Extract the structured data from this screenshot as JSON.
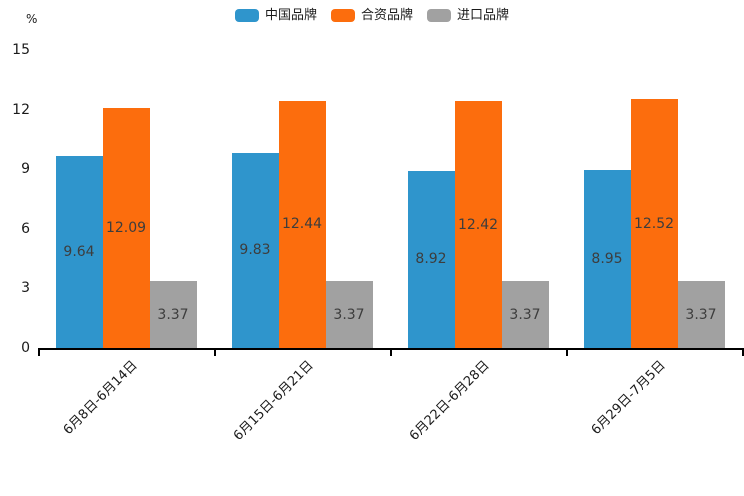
{
  "chart_data": {
    "type": "bar",
    "title": "",
    "unit_label": "%",
    "categories": [
      "6月8日-6月14日",
      "6月15日-6月21日",
      "6月22日-6月28日",
      "6月29日-7月5日"
    ],
    "series": [
      {
        "name": "中国品牌",
        "color": "#2F95CC",
        "values": [
          9.64,
          9.83,
          8.92,
          8.95
        ]
      },
      {
        "name": "合资品牌",
        "color": "#FC6D0D",
        "values": [
          12.09,
          12.44,
          12.42,
          12.52
        ]
      },
      {
        "name": "进口品牌",
        "color": "#A1A1A1",
        "values": [
          3.37,
          3.37,
          3.37,
          3.37
        ]
      }
    ],
    "ylim": [
      0,
      15
    ],
    "yticks": [
      0,
      3,
      6,
      9,
      12,
      15
    ],
    "grid": false,
    "legend_position": "top",
    "value_labels": true,
    "value_label_color": "#3d3d3d",
    "axis_color": "#000000",
    "background_color": "#ffffff"
  }
}
